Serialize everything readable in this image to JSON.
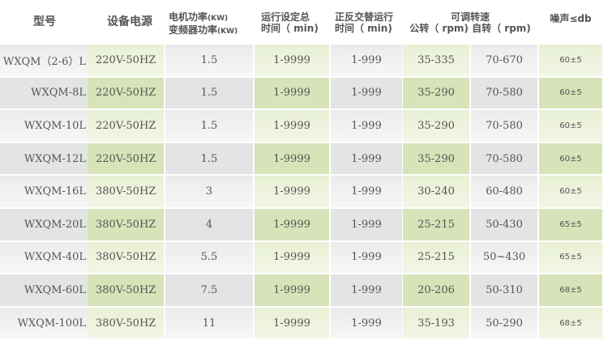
{
  "header": {
    "model": "型号",
    "power_source": "设备电源",
    "motor_power_1": "电机功率",
    "motor_power_1_unit": "(KW)",
    "motor_power_2": "变频器功率",
    "motor_power_2_unit": "(KW)",
    "run_time_1": "运行设定总",
    "run_time_2": "时间（ min)",
    "reverse_1": "正反交替运行",
    "reverse_2": "时间（ min)",
    "speed": "可调转速",
    "revolution": "公转（ rpm)",
    "rotation": "自转（ rpm)",
    "noise": "噪声≤db"
  },
  "rows": [
    [
      "WXQM（2-6）L",
      "220V-50HZ",
      "1.5",
      "1-9999",
      "1-999",
      "35-335",
      "70-670",
      "60±5"
    ],
    [
      "WXQM-8L",
      "220V-50HZ",
      "1.5",
      "1-9999",
      "1-999",
      "35-290",
      "70-580",
      "60±5"
    ],
    [
      "WXQM-10L",
      "220V-50HZ",
      "1.5",
      "1-9999",
      "1-999",
      "35-290",
      "70-580",
      "60±5"
    ],
    [
      "WXQM-12L",
      "220V-50HZ",
      "1.5",
      "1-9999",
      "1-999",
      "35-290",
      "70-580",
      "60±5"
    ],
    [
      "WXQM-16L",
      "380V-50HZ",
      "3",
      "1-9999",
      "1-999",
      "30-240",
      "60-480",
      "60±5"
    ],
    [
      "WXQM-20L",
      "380V-50HZ",
      "4",
      "1-9999",
      "1-999",
      "25-215",
      "50-430",
      "65±5"
    ],
    [
      "WXQM-40L",
      "380V-50HZ",
      "5.5",
      "1-9999",
      "1-999",
      "25-215",
      "50~430",
      "65±5"
    ],
    [
      "WXQM-60L",
      "380V-50HZ",
      "7.5",
      "1-9999",
      "1-999",
      "20-206",
      "50-310",
      "68±5"
    ],
    [
      "WXQM-100L",
      "380V-50HZ",
      "11",
      "1-9999",
      "1-999",
      "35-193",
      "50-290",
      "68±5"
    ]
  ]
}
